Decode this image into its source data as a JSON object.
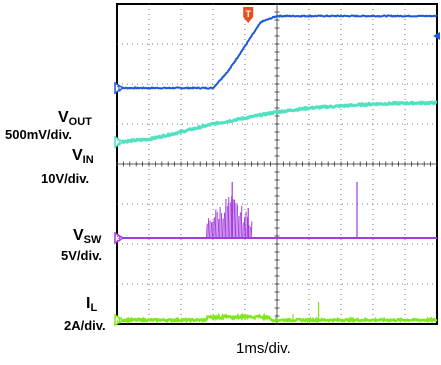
{
  "chart_data": {
    "type": "line",
    "title": "",
    "x_axis_label": "1ms/div.",
    "x_divisions": 10,
    "y_divisions": 8,
    "grid": true,
    "trigger_marker": "T",
    "channels": [
      {
        "name_main": "V",
        "name_sub": "OUT",
        "scale": "500mV/div.",
        "marker": "1",
        "color": "#1f5ad6",
        "t_div": [
          0,
          1,
          2,
          3,
          3.5,
          4,
          4.5,
          5,
          10
        ],
        "level_div": [
          5.9,
          5.9,
          5.9,
          5.9,
          6.35,
          6.95,
          7.55,
          7.7,
          7.7
        ]
      },
      {
        "name_main": "V",
        "name_sub": "IN",
        "scale": "10V/div.",
        "marker": "2",
        "color": "#4fe2c0",
        "t_div": [
          0,
          1,
          2,
          3,
          4,
          5,
          6,
          7,
          8,
          9,
          10
        ],
        "level_div": [
          4.55,
          4.62,
          4.8,
          5.0,
          5.15,
          5.3,
          5.4,
          5.45,
          5.5,
          5.52,
          5.53
        ]
      },
      {
        "name_main": "V",
        "name_sub": "SW",
        "scale": "5V/div.",
        "marker": "3",
        "color": "#a23cdc",
        "baseline_div": 2.15,
        "burst_start_div": 2.8,
        "burst_end_div": 4.2,
        "burst_peak_div": 3.3,
        "spikes": [
          {
            "t_div": 3.6,
            "peak_div": 3.55
          },
          {
            "t_div": 4.1,
            "peak_div": 2.9
          },
          {
            "t_div": 7.5,
            "peak_div": 3.55
          }
        ]
      },
      {
        "name_main": "I",
        "name_sub": "L",
        "scale": "2A/div.",
        "marker": "4",
        "color": "#7ee81c",
        "baseline_div": 0.1,
        "bump_start_div": 2.8,
        "bump_end_div": 4.8,
        "bump_level_div": 0.2,
        "spikes": [
          {
            "t_div": 5.5,
            "peak_div": 0.25
          },
          {
            "t_div": 6.3,
            "peak_div": 0.55
          }
        ]
      }
    ]
  }
}
